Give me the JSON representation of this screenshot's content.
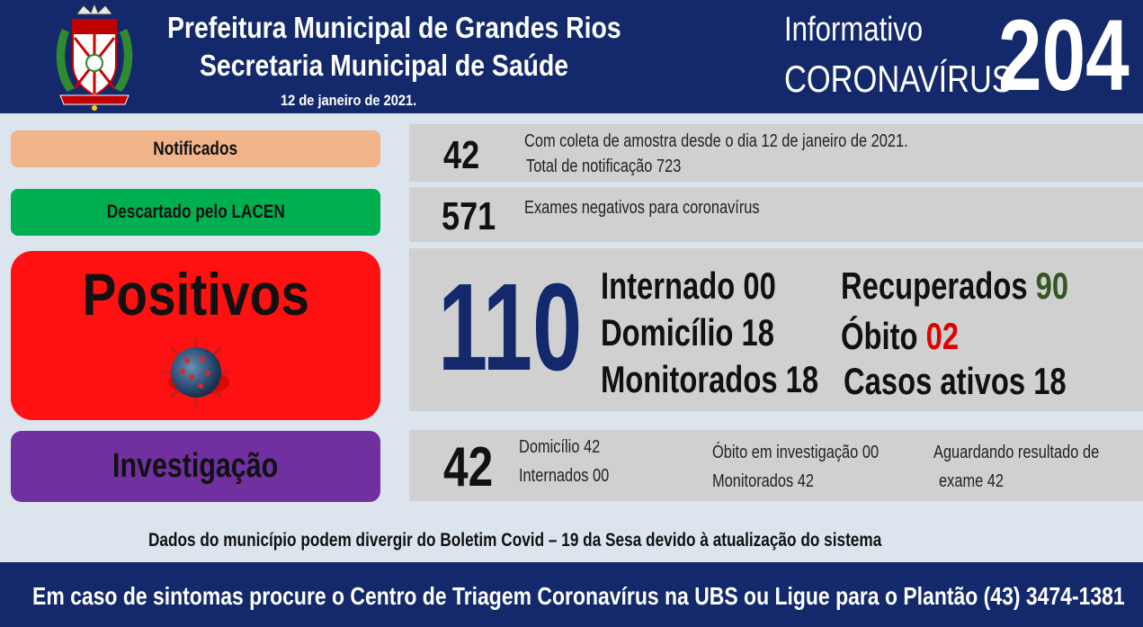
{
  "header": {
    "title_line1": "Prefeitura Municipal de Grandes Rios",
    "title_line2": "Secretaria Municipal de Saúde",
    "date": "12 de janeiro  de 2021.",
    "info_line1": "Informativo",
    "info_line2": "CORONAVÍRUS",
    "bulletin_number": "204"
  },
  "notificados": {
    "label": "Notificados",
    "value": "42",
    "line1": "Com coleta de amostra desde o dia 12 de janeiro de 2021.",
    "line2": "Total de notificação 723"
  },
  "descartado": {
    "label": "Descartado  pelo LACEN",
    "value": "571",
    "line1": "Exames negativos  para coronavírus"
  },
  "positivos": {
    "label": "Positivos",
    "value": "110",
    "internado": "Internado 00",
    "domicilio": "Domicílio 18",
    "monitorados": "Monitorados 18",
    "recuperados_label": "Recuperados",
    "recuperados_value": "90",
    "obito_label": "Óbito",
    "obito_value": "02",
    "casos_ativos": "Casos ativos 18"
  },
  "investigacao": {
    "label": "Investigação",
    "value": "42",
    "domicilio": "Domicílio 42",
    "internados": "Internados 00",
    "obito": "Óbito  em investigação  00",
    "monitorados": "Monitorados  42",
    "aguardando_line1": "Aguardando resultado de",
    "aguardando_line2": "exame 42"
  },
  "footnote": "Dados do município  podem  divergir  do Boletim  Covid – 19 da Sesa devido à atualização  do sistema",
  "footer": "Em caso de sintomas  procure  o Centro de Triagem  Coronavírus  na UBS ou Ligue para o Plantão  (43) 3474-1381",
  "colors": {
    "header_bg": "#13296b",
    "notificados": "#f2b48a",
    "descartado": "#00b050",
    "positivos": "#ff1111",
    "investigacao": "#7030a0",
    "recuperados_value": "#375623",
    "obito_value": "#e00000"
  }
}
